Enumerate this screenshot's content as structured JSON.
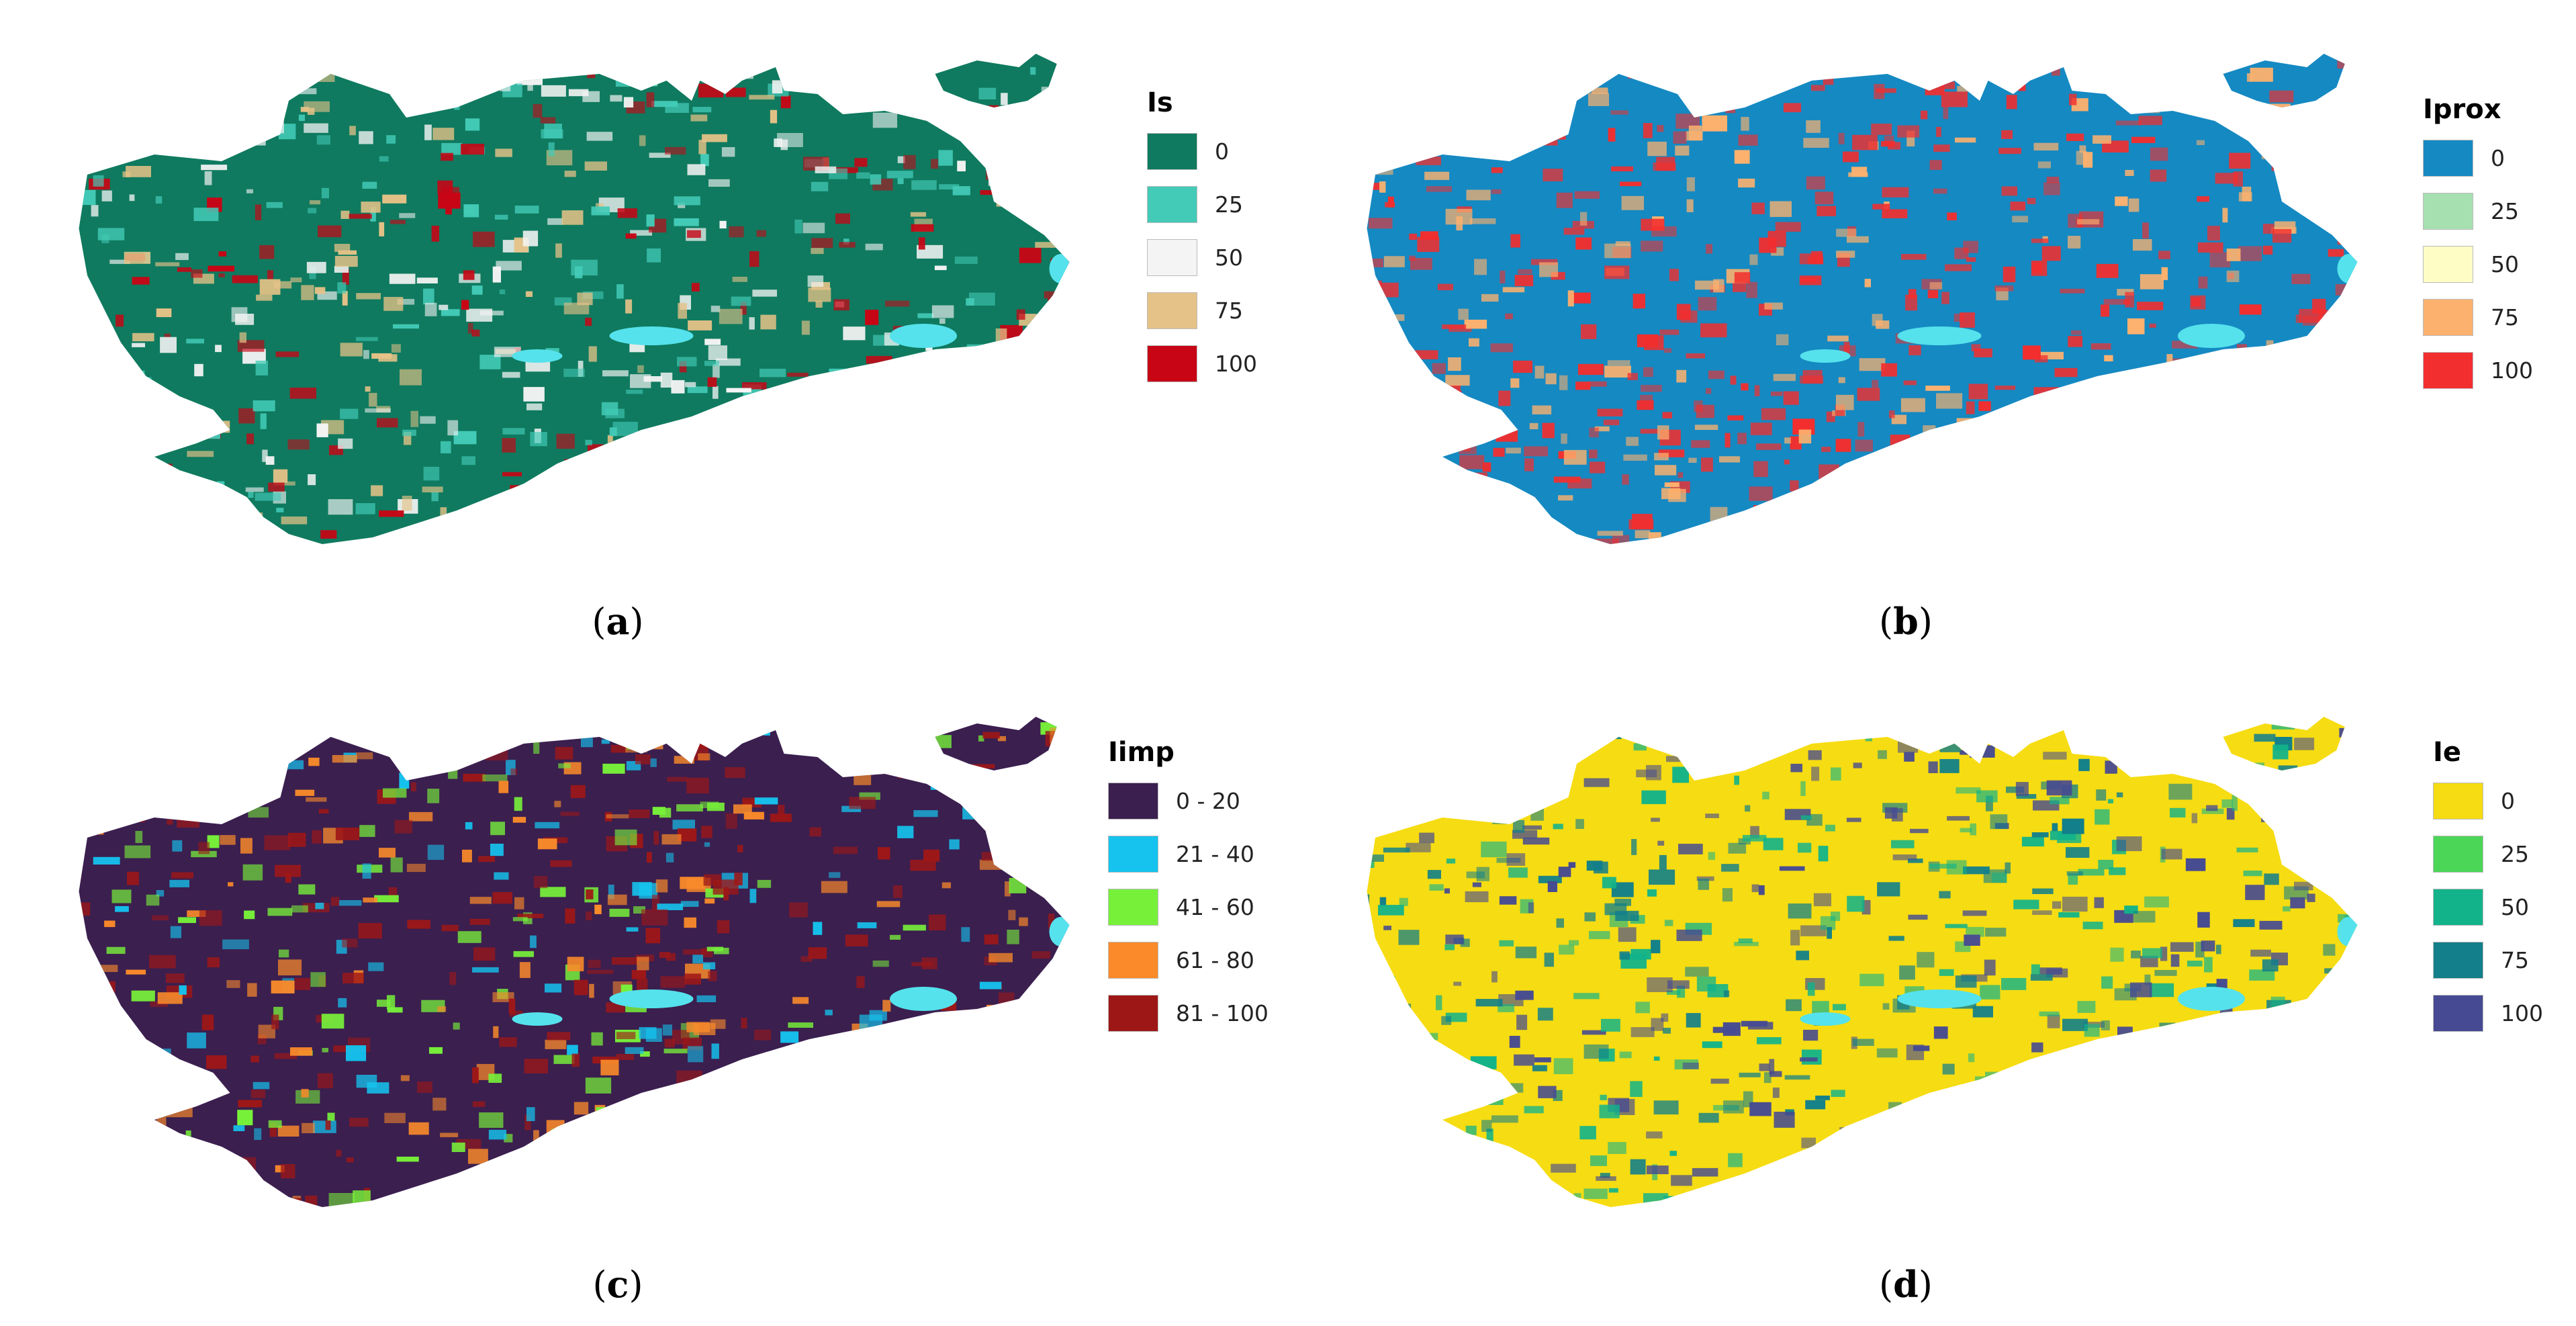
{
  "panels": [
    {
      "id": "a",
      "caption": "a",
      "legend": {
        "title": "Is",
        "items": [
          {
            "label": "0",
            "color": "#0f7a5f"
          },
          {
            "label": "25",
            "color": "#43cbb8"
          },
          {
            "label": "50",
            "color": "#f4f4f4"
          },
          {
            "label": "75",
            "color": "#e5c287"
          },
          {
            "label": "100",
            "color": "#c70515"
          }
        ]
      },
      "base_color": "#0f7a5f",
      "patch_palette": [
        "#43cbb8",
        "#f4f4f4",
        "#e5c287",
        "#c70515"
      ]
    },
    {
      "id": "b",
      "caption": "b",
      "legend": {
        "title": "Iprox",
        "items": [
          {
            "label": "0",
            "color": "#1589c2"
          },
          {
            "label": "25",
            "color": "#a6e0b0"
          },
          {
            "label": "50",
            "color": "#fefdc6"
          },
          {
            "label": "75",
            "color": "#fdb16e"
          },
          {
            "label": "100",
            "color": "#f22e2e"
          }
        ]
      },
      "base_color": "#1589c2",
      "patch_palette": [
        "#f22e2e",
        "#f22e2e",
        "#fdb16e"
      ]
    },
    {
      "id": "c",
      "caption": "c",
      "legend": {
        "title": "Iimp",
        "items": [
          {
            "label": "0 - 20",
            "color": "#3b1f4f"
          },
          {
            "label": "21 - 40",
            "color": "#15c3ee"
          },
          {
            "label": "41 - 60",
            "color": "#77f03a"
          },
          {
            "label": "61 - 80",
            "color": "#fa8a2a"
          },
          {
            "label": "81 - 100",
            "color": "#9e1717"
          }
        ]
      },
      "base_color": "#3b1f4f",
      "patch_palette": [
        "#9e1717",
        "#9e1717",
        "#fa8a2a",
        "#15c3ee",
        "#77f03a"
      ]
    },
    {
      "id": "d",
      "caption": "d",
      "legend": {
        "title": "Ie",
        "items": [
          {
            "label": "0",
            "color": "#f6dc12"
          },
          {
            "label": "25",
            "color": "#4bd658"
          },
          {
            "label": "50",
            "color": "#12b38a"
          },
          {
            "label": "75",
            "color": "#127f8a"
          },
          {
            "label": "100",
            "color": "#464a92"
          }
        ]
      },
      "base_color": "#f6dc12",
      "patch_palette": [
        "#464a92",
        "#127f8a",
        "#12b38a"
      ]
    }
  ],
  "water_color": "#55e2ec"
}
